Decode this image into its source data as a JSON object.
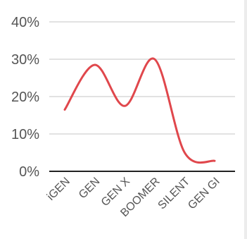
{
  "chart_data": {
    "type": "line",
    "categories": [
      "iGEN",
      "GEN",
      "GEN X",
      "BOOMER",
      "SILENT",
      "GEN GI"
    ],
    "series": [
      {
        "values": [
          16.5,
          28.5,
          17.5,
          30,
          5,
          2.8
        ]
      }
    ],
    "y_ticks": [
      "0%",
      "10%",
      "20%",
      "30%",
      "40%"
    ],
    "ylim": [
      0,
      40
    ],
    "grid": true,
    "line_color": "#e0474c",
    "grid_color": "#d8d8d8",
    "baseline_color": "#222222"
  }
}
